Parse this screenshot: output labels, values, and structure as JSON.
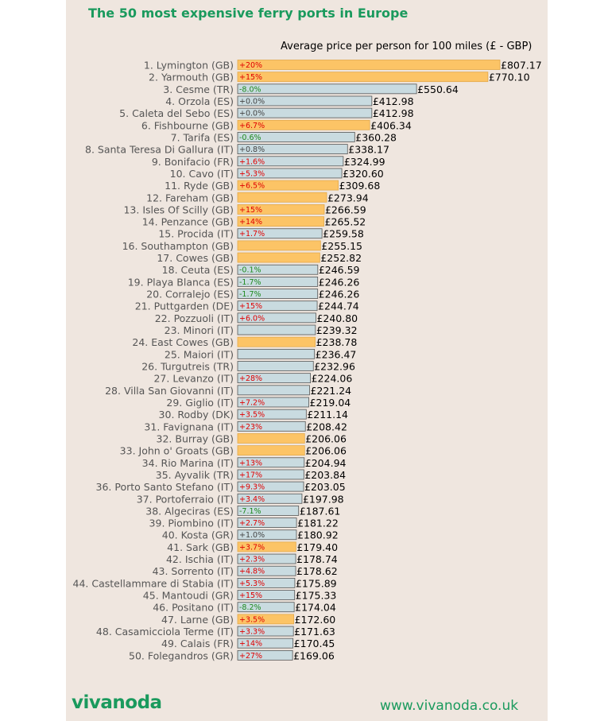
{
  "colors": {
    "background": "#efe6df",
    "highlight_bar": "#fcc466",
    "default_bar": "#c9dbe0",
    "bar_border": "#555555",
    "brand": "#1a9a5d",
    "change_positive": "#e00000",
    "change_negative": "#1f8a1f",
    "change_neutral": "#444444",
    "label_text": "#555555"
  },
  "footer": {
    "brand": "vivanoda",
    "website": "www.vivanoda.co.uk"
  },
  "chart_data": {
    "type": "bar",
    "orientation": "horizontal",
    "title": "The 50 most expensive ferry ports in Europe",
    "subtitle": "Average price per person for 100 miles (£ - GBP)",
    "currency_prefix": "£",
    "categories": [
      "1. Lymington (GB)",
      "2. Yarmouth (GB)",
      "3. Cesme (TR)",
      "4. Orzola (ES)",
      "5. Caleta del Sebo (ES)",
      "6. Fishbourne (GB)",
      "7. Tarifa (ES)",
      "8. Santa Teresa Di Gallura (IT)",
      "9. Bonifacio (FR)",
      "10. Cavo (IT)",
      "11. Ryde (GB)",
      "12. Fareham (GB)",
      "13. Isles Of Scilly (GB)",
      "14. Penzance (GB)",
      "15. Procida (IT)",
      "16. Southampton (GB)",
      "17. Cowes (GB)",
      "18. Ceuta (ES)",
      "19. Playa Blanca (ES)",
      "20. Corralejo (ES)",
      "21. Puttgarden (DE)",
      "22. Pozzuoli (IT)",
      "23. Minori (IT)",
      "24. East Cowes (GB)",
      "25. Maiori (IT)",
      "26. Turgutreis (TR)",
      "27. Levanzo (IT)",
      "28. Villa San Giovanni (IT)",
      "29. Giglio (IT)",
      "30. Rodby (DK)",
      "31. Favignana (IT)",
      "32. Burray (GB)",
      "33. John o' Groats (GB)",
      "34. Rio Marina (IT)",
      "35. Ayvalik (TR)",
      "36. Porto Santo Stefano (IT)",
      "37. Portoferraio (IT)",
      "38. Algeciras (ES)",
      "39. Piombino (IT)",
      "40. Kosta (GR)",
      "41. Sark (GB)",
      "42. Ischia (IT)",
      "43. Sorrento (IT)",
      "44. Castellammare di Stabia (IT)",
      "45. Mantoudi (GR)",
      "46. Positano (IT)",
      "47. Larne (GB)",
      "48. Casamicciola Terme (IT)",
      "49. Calais (FR)",
      "50. Folegandros (GR)"
    ],
    "values": [
      807.17,
      770.1,
      550.64,
      412.98,
      412.98,
      406.34,
      360.28,
      338.17,
      324.99,
      320.6,
      309.68,
      273.94,
      266.59,
      265.52,
      259.58,
      255.15,
      252.82,
      246.59,
      246.26,
      246.26,
      244.74,
      240.8,
      239.32,
      238.78,
      236.47,
      232.96,
      224.06,
      221.24,
      219.04,
      211.14,
      208.42,
      206.06,
      206.06,
      204.94,
      203.84,
      203.05,
      197.98,
      187.61,
      181.22,
      180.92,
      179.4,
      178.74,
      178.62,
      175.89,
      175.33,
      174.04,
      172.6,
      171.63,
      170.45,
      169.06
    ],
    "value_labels": [
      "£807.17",
      "£770.10",
      "£550.64",
      "£412.98",
      "£412.98",
      "£406.34",
      "£360.28",
      "£338.17",
      "£324.99",
      "£320.60",
      "£309.68",
      "£273.94",
      "£266.59",
      "£265.52",
      "£259.58",
      "£255.15",
      "£252.82",
      "£246.59",
      "£246.26",
      "£246.26",
      "£244.74",
      "£240.80",
      "£239.32",
      "£238.78",
      "£236.47",
      "£232.96",
      "£224.06",
      "£221.24",
      "£219.04",
      "£211.14",
      "£208.42",
      "£206.06",
      "£206.06",
      "£204.94",
      "£203.84",
      "£203.05",
      "£197.98",
      "£187.61",
      "£181.22",
      "£180.92",
      "£179.40",
      "£178.74",
      "£178.62",
      "£175.89",
      "£175.33",
      "£174.04",
      "£172.60",
      "£171.63",
      "£170.45",
      "£169.06"
    ],
    "changes": [
      "+20%",
      "+15%",
      "-8.0%",
      "+0.0%",
      "+0.0%",
      "+6.7%",
      "-0.6%",
      "+0.8%",
      "+1.6%",
      "+5.3%",
      "+6.5%",
      "",
      "+15%",
      "+14%",
      "+1.7%",
      "",
      "",
      "-0.1%",
      "-1.7%",
      "-1.7%",
      "+15%",
      "+6.0%",
      "",
      "",
      "",
      "",
      "+28%",
      "",
      "+7.2%",
      "+3.5%",
      "+23%",
      "",
      "",
      "+13%",
      "+17%",
      "+9.3%",
      "+3.4%",
      "-7.1%",
      "+2.7%",
      "+1.0%",
      "+3.7%",
      "+2.3%",
      "+4.8%",
      "+5.3%",
      "+15%",
      "-8.2%",
      "+3.5%",
      "+3.3%",
      "+14%",
      "+27%"
    ],
    "highlighted": [
      true,
      true,
      false,
      false,
      false,
      true,
      false,
      false,
      false,
      false,
      true,
      true,
      true,
      true,
      false,
      true,
      true,
      false,
      false,
      false,
      false,
      false,
      false,
      true,
      false,
      false,
      false,
      false,
      false,
      false,
      false,
      true,
      true,
      false,
      false,
      false,
      false,
      false,
      false,
      false,
      true,
      false,
      false,
      false,
      false,
      false,
      true,
      false,
      false,
      false
    ],
    "xlim": [
      0,
      807.17
    ],
    "grid": false,
    "legend": "none"
  }
}
